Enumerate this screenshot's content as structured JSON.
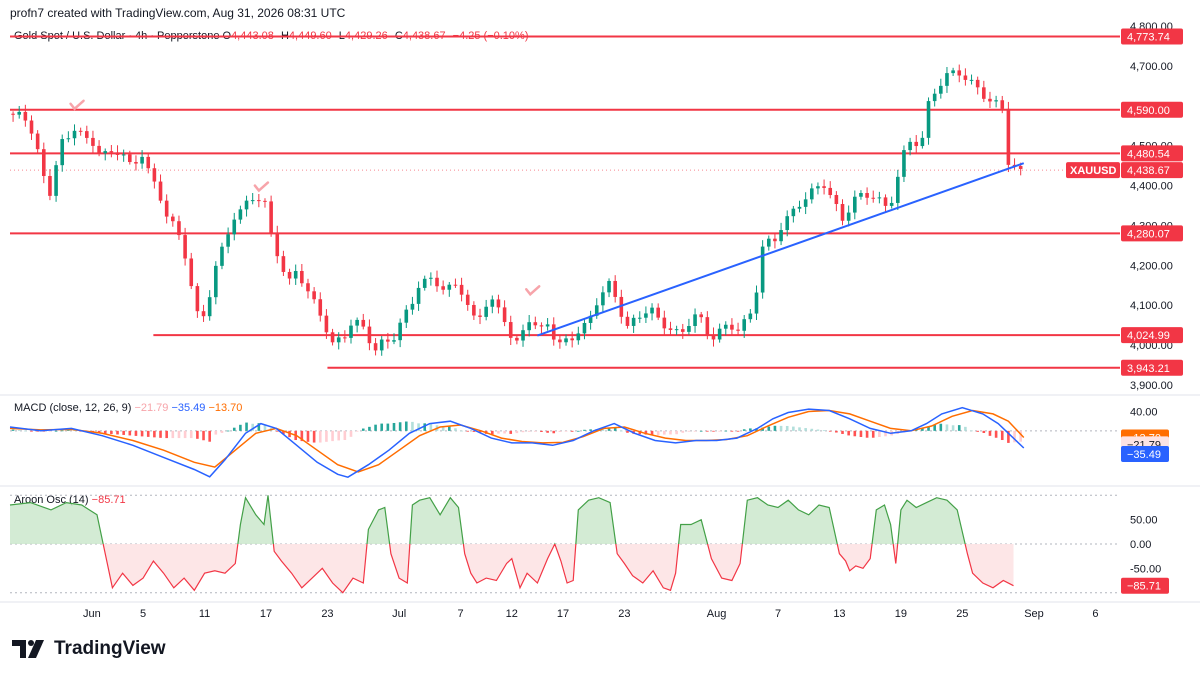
{
  "header": {
    "text": "profn7 created with TradingView.com, Aug 31, 2026 08:31 UTC"
  },
  "legend": {
    "title": "Gold Spot / U.S. Dollar · 4h · Pepperstone",
    "o_label": "O",
    "o": "4,443.08",
    "h_label": "H",
    "h": "4,449.60",
    "l_label": "L",
    "l": "4,429.26",
    "c_label": "C",
    "c": "4,438.67",
    "change": "−4.25 (−0.10%)"
  },
  "macd_legend": {
    "label": "MACD (close, 12, 26, 9)",
    "hist": "−21.79",
    "macd": "−35.49",
    "signal": "−13.70"
  },
  "aroon_legend": {
    "label": "Aroon Osc (14)",
    "value": "−85.71"
  },
  "footer": {
    "brand": "TradingView"
  },
  "colors": {
    "up": "#089981",
    "down": "#f23645",
    "level": "#f23645",
    "trend": "#2962ff",
    "macd": "#2962ff",
    "signal": "#ff6d00"
  },
  "chart_data": [
    {
      "type": "candlestick",
      "symbol": "XAUUSD",
      "title": "Gold Spot / U.S. Dollar · 4h · Pepperstone",
      "ylim": [
        3880,
        4820
      ],
      "y_ticks": [
        "4,800.00",
        "4,700.00",
        "4,600.00",
        "4,500.00",
        "4,400.00",
        "4,300.00",
        "4,200.00",
        "4,100.00",
        "4,000.00",
        "3,900.00"
      ],
      "x_ticks": [
        "Jun",
        "5",
        "11",
        "17",
        "23",
        "Jul",
        "7",
        "12",
        "17",
        "23",
        "Aug",
        "7",
        "13",
        "19",
        "25",
        "Sep",
        "6"
      ],
      "x_range_days": [
        0,
        100
      ],
      "x_tick_days": [
        8,
        13,
        19,
        25,
        31,
        38,
        44,
        49,
        54,
        60,
        69,
        75,
        81,
        87,
        93,
        100,
        106
      ],
      "horizontal_levels": [
        {
          "price": 4773.74,
          "label": "4,773.74",
          "start_day": 0
        },
        {
          "price": 4590.0,
          "label": "4,590.00",
          "start_day": 0
        },
        {
          "price": 4480.54,
          "label": "4,480.54",
          "start_day": 0
        },
        {
          "price": 4280.07,
          "label": "4,280.07",
          "start_day": 0
        },
        {
          "price": 4024.99,
          "label": "4,024.99",
          "start_day": 14
        },
        {
          "price": 3943.21,
          "label": "3,943.21",
          "start_day": 31
        }
      ],
      "last_price": {
        "symbol": "XAUUSD",
        "price": 4438.67,
        "label": "4,438.67"
      },
      "trendline": [
        {
          "day": 51.5,
          "price": 4024
        },
        {
          "day": 99,
          "price": 4456
        }
      ],
      "checkmarks": [
        {
          "day": 6.5,
          "price": 4600
        },
        {
          "day": 24.5,
          "price": 4395
        },
        {
          "day": 51,
          "price": 4135
        }
      ],
      "anchors": [
        [
          0,
          4580
        ],
        [
          1.3,
          4570
        ],
        [
          2.4,
          4520
        ],
        [
          3.2,
          4420
        ],
        [
          4.0,
          4375
        ],
        [
          4.8,
          4510
        ],
        [
          5.7,
          4520
        ],
        [
          6.5,
          4560
        ],
        [
          7.5,
          4510
        ],
        [
          8.7,
          4485
        ],
        [
          10,
          4470
        ],
        [
          11,
          4490
        ],
        [
          12,
          4440
        ],
        [
          13,
          4490
        ],
        [
          14,
          4410
        ],
        [
          15,
          4340
        ],
        [
          16,
          4300
        ],
        [
          17.2,
          4210
        ],
        [
          18,
          4120
        ],
        [
          18.6,
          4040
        ],
        [
          19.4,
          4120
        ],
        [
          20.2,
          4220
        ],
        [
          21,
          4255
        ],
        [
          22,
          4330
        ],
        [
          22.8,
          4340
        ],
        [
          23.5,
          4360
        ],
        [
          24.8,
          4370
        ],
        [
          25.3,
          4290
        ],
        [
          26,
          4240
        ],
        [
          27.2,
          4160
        ],
        [
          28,
          4190
        ],
        [
          28.8,
          4150
        ],
        [
          30.5,
          4060
        ],
        [
          31.5,
          4000
        ],
        [
          32.6,
          4020
        ],
        [
          33.5,
          4070
        ],
        [
          34.8,
          4040
        ],
        [
          35.5,
          3985
        ],
        [
          36.6,
          4010
        ],
        [
          37.2,
          4000
        ],
        [
          38.3,
          4060
        ],
        [
          39.2,
          4100
        ],
        [
          40,
          4160
        ],
        [
          41.3,
          4170
        ],
        [
          42.5,
          4140
        ],
        [
          43.8,
          4150
        ],
        [
          44.6,
          4100
        ],
        [
          45.5,
          4050
        ],
        [
          46.8,
          4120
        ],
        [
          47.5,
          4100
        ],
        [
          48.3,
          4070
        ],
        [
          49,
          4020
        ],
        [
          49.7,
          4000
        ],
        [
          50.5,
          4070
        ],
        [
          51.8,
          4030
        ],
        [
          52.5,
          4050
        ],
        [
          53.5,
          4000
        ],
        [
          54.8,
          4020
        ],
        [
          55.5,
          4040
        ],
        [
          56.5,
          4060
        ],
        [
          57.5,
          4120
        ],
        [
          58.6,
          4150
        ],
        [
          59.5,
          4090
        ],
        [
          60.2,
          4040
        ],
        [
          61.2,
          4070
        ],
        [
          62.5,
          4100
        ],
        [
          63.5,
          4060
        ],
        [
          64.5,
          4040
        ],
        [
          65.5,
          4020
        ],
        [
          66.5,
          4060
        ],
        [
          67.2,
          4080
        ],
        [
          67.8,
          4040
        ],
        [
          68.5,
          4020
        ],
        [
          69.7,
          4050
        ],
        [
          70.5,
          4050
        ],
        [
          71.2,
          4040
        ],
        [
          72.5,
          4080
        ],
        [
          73,
          4150
        ],
        [
          73.6,
          4260
        ],
        [
          74.5,
          4250
        ],
        [
          75.5,
          4310
        ],
        [
          76.5,
          4340
        ],
        [
          77.5,
          4370
        ],
        [
          78.5,
          4390
        ],
        [
          79.6,
          4400
        ],
        [
          80.5,
          4350
        ],
        [
          81.3,
          4310
        ],
        [
          82.5,
          4370
        ],
        [
          83.3,
          4380
        ],
        [
          84.5,
          4380
        ],
        [
          85.8,
          4335
        ],
        [
          86.5,
          4400
        ],
        [
          87.2,
          4470
        ],
        [
          88,
          4510
        ],
        [
          89,
          4500
        ],
        [
          89.6,
          4600
        ],
        [
          90.5,
          4650
        ],
        [
          91.5,
          4680
        ],
        [
          92.5,
          4690
        ],
        [
          93.5,
          4660
        ],
        [
          94.5,
          4640
        ],
        [
          95.5,
          4610
        ],
        [
          96.2,
          4600
        ],
        [
          96.8,
          4630
        ],
        [
          97.3,
          4470
        ],
        [
          97.8,
          4455
        ],
        [
          98.5,
          4440
        ],
        [
          99,
          4438.67
        ]
      ]
    },
    {
      "type": "macd",
      "title": "MACD (close, 12, 26, 9)",
      "ylim": [
        -110,
        70
      ],
      "y_ticks": [
        "40.00"
      ],
      "last": {
        "signal": -13.7,
        "histogram": -21.79,
        "macd": -35.49
      },
      "macd": [
        [
          0,
          8
        ],
        [
          3,
          0
        ],
        [
          6,
          5
        ],
        [
          9,
          -10
        ],
        [
          12,
          -30
        ],
        [
          15,
          -55
        ],
        [
          18,
          -80
        ],
        [
          19.5,
          -95
        ],
        [
          21,
          -60
        ],
        [
          23,
          -5
        ],
        [
          24.5,
          15
        ],
        [
          26,
          5
        ],
        [
          28,
          -30
        ],
        [
          30,
          -65
        ],
        [
          32,
          -90
        ],
        [
          33,
          -96
        ],
        [
          35,
          -70
        ],
        [
          37,
          -40
        ],
        [
          39,
          -5
        ],
        [
          41,
          15
        ],
        [
          43,
          20
        ],
        [
          45,
          5
        ],
        [
          47,
          -15
        ],
        [
          49,
          -25
        ],
        [
          51,
          -25
        ],
        [
          53,
          -30
        ],
        [
          55,
          -20
        ],
        [
          57,
          0
        ],
        [
          59,
          15
        ],
        [
          61,
          -5
        ],
        [
          63,
          -20
        ],
        [
          65,
          -25
        ],
        [
          67,
          -20
        ],
        [
          69,
          -20
        ],
        [
          71,
          -15
        ],
        [
          73,
          5
        ],
        [
          74.5,
          25
        ],
        [
          76,
          38
        ],
        [
          78,
          45
        ],
        [
          80,
          42
        ],
        [
          82,
          25
        ],
        [
          84,
          5
        ],
        [
          86,
          -5
        ],
        [
          88,
          0
        ],
        [
          89.5,
          15
        ],
        [
          91,
          35
        ],
        [
          93,
          48
        ],
        [
          95,
          35
        ],
        [
          96.5,
          15
        ],
        [
          97.5,
          -5
        ],
        [
          99,
          -35.49
        ]
      ],
      "signal": [
        [
          0,
          5
        ],
        [
          3,
          2
        ],
        [
          6,
          3
        ],
        [
          9,
          -5
        ],
        [
          12,
          -20
        ],
        [
          15,
          -40
        ],
        [
          18,
          -65
        ],
        [
          20,
          -75
        ],
        [
          22,
          -40
        ],
        [
          24,
          -5
        ],
        [
          26,
          5
        ],
        [
          28,
          -10
        ],
        [
          30,
          -40
        ],
        [
          32,
          -70
        ],
        [
          34,
          -85
        ],
        [
          36,
          -70
        ],
        [
          38,
          -40
        ],
        [
          40,
          -10
        ],
        [
          42,
          8
        ],
        [
          44,
          12
        ],
        [
          46,
          0
        ],
        [
          48,
          -15
        ],
        [
          50,
          -22
        ],
        [
          52,
          -25
        ],
        [
          54,
          -24
        ],
        [
          56,
          -12
        ],
        [
          58,
          5
        ],
        [
          60,
          8
        ],
        [
          62,
          -5
        ],
        [
          64,
          -15
        ],
        [
          66,
          -20
        ],
        [
          68,
          -20
        ],
        [
          70,
          -18
        ],
        [
          72,
          -10
        ],
        [
          74,
          10
        ],
        [
          76,
          28
        ],
        [
          78,
          40
        ],
        [
          80,
          42
        ],
        [
          82,
          35
        ],
        [
          84,
          20
        ],
        [
          86,
          5
        ],
        [
          88,
          0
        ],
        [
          90,
          10
        ],
        [
          92,
          30
        ],
        [
          94,
          42
        ],
        [
          96,
          35
        ],
        [
          97.5,
          20
        ],
        [
          99,
          -13.7
        ]
      ]
    },
    {
      "type": "area",
      "title": "Aroon Osc (14)",
      "ylim": [
        -115,
        115
      ],
      "y_ticks": [
        "50.00",
        "0.00",
        "-50.00"
      ],
      "last": -85.71,
      "values": [
        [
          0,
          80
        ],
        [
          2,
          85
        ],
        [
          4,
          70
        ],
        [
          5.5,
          85
        ],
        [
          7,
          80
        ],
        [
          8.5,
          60
        ],
        [
          9.5,
          -40
        ],
        [
          10,
          -90
        ],
        [
          11,
          -60
        ],
        [
          12,
          -85
        ],
        [
          13,
          -70
        ],
        [
          14,
          -35
        ],
        [
          15,
          -60
        ],
        [
          16,
          -90
        ],
        [
          17,
          -70
        ],
        [
          18,
          -95
        ],
        [
          19,
          -60
        ],
        [
          20,
          -55
        ],
        [
          21,
          -60
        ],
        [
          22,
          -40
        ],
        [
          22.5,
          40
        ],
        [
          23,
          95
        ],
        [
          24,
          60
        ],
        [
          24.8,
          40
        ],
        [
          25.2,
          100
        ],
        [
          25.8,
          -15
        ],
        [
          26.5,
          -35
        ],
        [
          27.5,
          -60
        ],
        [
          28.5,
          -90
        ],
        [
          29.5,
          -70
        ],
        [
          30.5,
          -50
        ],
        [
          31.5,
          -80
        ],
        [
          32.5,
          -100
        ],
        [
          33.5,
          -70
        ],
        [
          34.5,
          -80
        ],
        [
          35,
          30
        ],
        [
          36,
          70
        ],
        [
          36.6,
          75
        ],
        [
          37.2,
          -20
        ],
        [
          38,
          -70
        ],
        [
          38.8,
          -80
        ],
        [
          39.3,
          80
        ],
        [
          40,
          90
        ],
        [
          41,
          95
        ],
        [
          42,
          60
        ],
        [
          43,
          95
        ],
        [
          43.8,
          75
        ],
        [
          44.4,
          -20
        ],
        [
          45,
          -60
        ],
        [
          45.6,
          -80
        ],
        [
          46.5,
          -70
        ],
        [
          47.5,
          -75
        ],
        [
          48.5,
          -40
        ],
        [
          49,
          -30
        ],
        [
          49.8,
          -90
        ],
        [
          50.5,
          -60
        ],
        [
          51.5,
          -80
        ],
        [
          52.5,
          -30
        ],
        [
          53.2,
          0
        ],
        [
          53.8,
          -35
        ],
        [
          54.4,
          -80
        ],
        [
          55,
          -75
        ],
        [
          55.5,
          70
        ],
        [
          56.5,
          90
        ],
        [
          57.5,
          95
        ],
        [
          58.6,
          85
        ],
        [
          59.3,
          -20
        ],
        [
          60,
          -40
        ],
        [
          60.8,
          -65
        ],
        [
          61.8,
          -80
        ],
        [
          62.8,
          -55
        ],
        [
          63.8,
          -90
        ],
        [
          64.5,
          -95
        ],
        [
          65,
          -60
        ],
        [
          65.5,
          40
        ],
        [
          66.5,
          40
        ],
        [
          67.5,
          50
        ],
        [
          68.5,
          -30
        ],
        [
          69.5,
          -70
        ],
        [
          70.5,
          -75
        ],
        [
          71.3,
          -40
        ],
        [
          72,
          90
        ],
        [
          73,
          95
        ],
        [
          74,
          80
        ],
        [
          75,
          75
        ],
        [
          76,
          90
        ],
        [
          77,
          70
        ],
        [
          78,
          60
        ],
        [
          79,
          80
        ],
        [
          80,
          75
        ],
        [
          81,
          -20
        ],
        [
          81.6,
          -35
        ],
        [
          82,
          -55
        ],
        [
          82.6,
          -45
        ],
        [
          83.3,
          -50
        ],
        [
          84,
          -30
        ],
        [
          84.6,
          70
        ],
        [
          85.4,
          80
        ],
        [
          86,
          40
        ],
        [
          86.5,
          -40
        ],
        [
          87,
          70
        ],
        [
          87.6,
          90
        ],
        [
          88.5,
          75
        ],
        [
          89.5,
          85
        ],
        [
          90.5,
          95
        ],
        [
          91.5,
          90
        ],
        [
          92.5,
          70
        ],
        [
          93.5,
          -20
        ],
        [
          94,
          -60
        ],
        [
          95,
          -80
        ],
        [
          96,
          -90
        ],
        [
          97,
          -75
        ],
        [
          98,
          -85.71
        ]
      ]
    }
  ]
}
